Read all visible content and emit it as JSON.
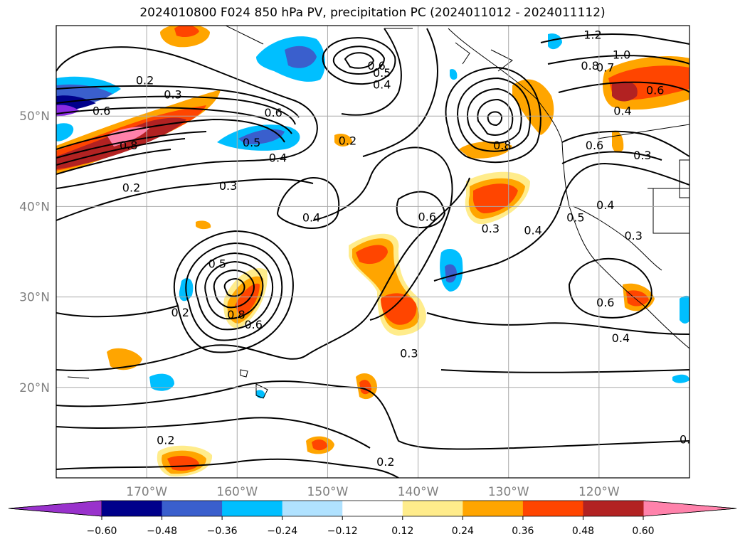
{
  "title": "2024010800 F024 850 hPa PV, precipitation PC (2024011012 - 2024011112)",
  "map": {
    "lon_ticks": [
      {
        "lon": -170,
        "label": "170°W"
      },
      {
        "lon": -160,
        "label": "160°W"
      },
      {
        "lon": -150,
        "label": "150°W"
      },
      {
        "lon": -140,
        "label": "140°W"
      },
      {
        "lon": -130,
        "label": "130°W"
      },
      {
        "lon": -120,
        "label": "120°W"
      }
    ],
    "lat_ticks": [
      {
        "lat": 50,
        "label": "50°N"
      },
      {
        "lat": 40,
        "label": "40°N"
      },
      {
        "lat": 30,
        "label": "30°N"
      },
      {
        "lat": 20,
        "label": "20°N"
      }
    ],
    "grid": true,
    "contour_labels": [
      {
        "text": "0.2",
        "lon": -170.2,
        "lat": 54.0
      },
      {
        "text": "0.3",
        "lon": -167.1,
        "lat": 52.4
      },
      {
        "text": "0.6",
        "lon": -175.0,
        "lat": 50.6
      },
      {
        "text": "0.8",
        "lon": -172.0,
        "lat": 46.8
      },
      {
        "text": "0.2",
        "lon": -171.7,
        "lat": 42.1
      },
      {
        "text": "0.3",
        "lon": -161.0,
        "lat": 42.3
      },
      {
        "text": "0.6",
        "lon": -156.0,
        "lat": 50.4
      },
      {
        "text": "0.5",
        "lon": -158.4,
        "lat": 47.1
      },
      {
        "text": "0.4",
        "lon": -155.5,
        "lat": 45.4
      },
      {
        "text": "0.6",
        "lon": -144.6,
        "lat": 55.6
      },
      {
        "text": "0.5",
        "lon": -144.0,
        "lat": 54.8
      },
      {
        "text": "0.4",
        "lon": -144.0,
        "lat": 53.5
      },
      {
        "text": "0.2",
        "lon": -147.8,
        "lat": 47.3
      },
      {
        "text": "0.4",
        "lon": -151.8,
        "lat": 38.8
      },
      {
        "text": "0.6",
        "lon": -139.0,
        "lat": 38.9
      },
      {
        "text": "0.3",
        "lon": -132.0,
        "lat": 37.6
      },
      {
        "text": "0.4",
        "lon": -127.3,
        "lat": 37.4
      },
      {
        "text": "0.8",
        "lon": -130.7,
        "lat": 46.8
      },
      {
        "text": "1.2",
        "lon": -120.7,
        "lat": 59.0
      },
      {
        "text": "1.0",
        "lon": -117.5,
        "lat": 56.8
      },
      {
        "text": "0.8",
        "lon": -121.0,
        "lat": 55.6
      },
      {
        "text": "0.7",
        "lon": -119.3,
        "lat": 55.4
      },
      {
        "text": "0.6",
        "lon": -113.8,
        "lat": 52.9
      },
      {
        "text": "0.4",
        "lon": -117.4,
        "lat": 50.6
      },
      {
        "text": "0.6",
        "lon": -120.5,
        "lat": 46.8
      },
      {
        "text": "0.3",
        "lon": -115.2,
        "lat": 45.7
      },
      {
        "text": "0.5",
        "lon": -122.6,
        "lat": 38.8
      },
      {
        "text": "0.4",
        "lon": -119.3,
        "lat": 40.2
      },
      {
        "text": "0.3",
        "lon": -116.2,
        "lat": 36.8
      },
      {
        "text": "0.6",
        "lon": -119.3,
        "lat": 29.4
      },
      {
        "text": "0.4",
        "lon": -117.6,
        "lat": 25.5
      },
      {
        "text": "0.5",
        "lon": -162.2,
        "lat": 33.7
      },
      {
        "text": "0.8",
        "lon": -160.1,
        "lat": 28.1
      },
      {
        "text": "0.6",
        "lon": -158.2,
        "lat": 27.0
      },
      {
        "text": "0.2",
        "lon": -166.3,
        "lat": 28.3
      },
      {
        "text": "0.3",
        "lon": -141.0,
        "lat": 23.8
      },
      {
        "text": "0.2",
        "lon": -167.9,
        "lat": 14.2
      },
      {
        "text": "0.2",
        "lon": -143.6,
        "lat": 11.8
      },
      {
        "text": "0.",
        "lon": -110.5,
        "lat": 14.3
      }
    ]
  },
  "colorbar": {
    "bounds": [
      -0.72,
      -0.6,
      -0.48,
      -0.36,
      -0.24,
      -0.12,
      0.12,
      0.24,
      0.36,
      0.48,
      0.6,
      0.72
    ],
    "colors": [
      "#8a2be2",
      "#00008b",
      "#3a5fcd",
      "#00bfff",
      "#b0e2ff",
      "#ffffff",
      "#ffec8b",
      "#ffa500",
      "#ff4500",
      "#b22222",
      "#ff82ab"
    ],
    "extend_colors": {
      "min": "#9932cc",
      "max": "#ff82ab"
    },
    "tick_labels": [
      "−0.60",
      "−0.48",
      "−0.36",
      "−0.24",
      "−0.12",
      "0.12",
      "0.24",
      "0.36",
      "0.48",
      "0.60"
    ],
    "tick_values": [
      -0.6,
      -0.48,
      -0.36,
      -0.24,
      -0.12,
      0.12,
      0.24,
      0.36,
      0.48,
      0.6
    ]
  }
}
